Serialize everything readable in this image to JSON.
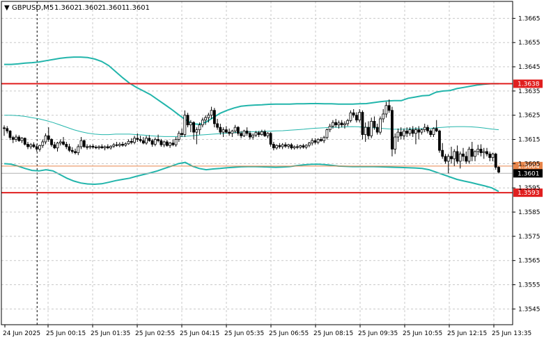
{
  "header": {
    "arrow": "▼",
    "symbol": "GBPUSD,M5",
    "open": "1.3602",
    "high": "1.3602",
    "low": "1.3601",
    "close": "1.3601"
  },
  "chart_data": {
    "type": "candlestick",
    "grid": true,
    "ylim": [
      1.35385,
      1.3672
    ],
    "y_ticks": [
      "1.3665",
      "1.3655",
      "1.3645",
      "1.3635",
      "1.3625",
      "1.3615",
      "1.3605",
      "1.3595",
      "1.3585",
      "1.3575",
      "1.3565",
      "1.3555",
      "1.3545"
    ],
    "x_ticks": [
      "24 Jun 2025",
      "25 Jun 00:15",
      "25 Jun 01:35",
      "25 Jun 02:55",
      "25 Jun 04:15",
      "25 Jun 05:35",
      "25 Jun 06:55",
      "25 Jun 08:15",
      "25 Jun 09:35",
      "25 Jun 10:55",
      "25 Jun 12:15",
      "25 Jun 13:35"
    ],
    "session_marker_index": 13,
    "levels": [
      {
        "value": 1.3638,
        "label": "1.3638",
        "color": "#e01f1f"
      },
      {
        "value": 1.3593,
        "label": "1.3593",
        "color": "#e01f1f"
      },
      {
        "value": 1.3604,
        "label": "1.3604",
        "color": "#e8854a"
      }
    ],
    "bid": {
      "value": 1.3601,
      "label": "1.3601"
    },
    "colors": {
      "bands": "#22b5ab",
      "candles": "#000000",
      "grid": "#c8c8c8"
    },
    "candles": [
      [
        1.36198,
        1.36208,
        1.36165,
        1.36195
      ],
      [
        1.36195,
        1.36205,
        1.36175,
        1.36185
      ],
      [
        1.36185,
        1.36188,
        1.36148,
        1.36158
      ],
      [
        1.36158,
        1.36165,
        1.36135,
        1.3615
      ],
      [
        1.3615,
        1.3617,
        1.3614,
        1.3616
      ],
      [
        1.3616,
        1.36168,
        1.3614,
        1.36145
      ],
      [
        1.36145,
        1.3616,
        1.36135,
        1.36155
      ],
      [
        1.36155,
        1.36158,
        1.36125,
        1.3613
      ],
      [
        1.3613,
        1.3614,
        1.3611,
        1.3612
      ],
      [
        1.3612,
        1.36135,
        1.3611,
        1.36128
      ],
      [
        1.36128,
        1.36138,
        1.36115,
        1.3612
      ],
      [
        1.3612,
        1.3613,
        1.361,
        1.3611
      ],
      [
        1.3611,
        1.36128,
        1.361,
        1.36125
      ],
      [
        1.36125,
        1.3615,
        1.36115,
        1.3614
      ],
      [
        1.3614,
        1.36175,
        1.3613,
        1.36165
      ],
      [
        1.36165,
        1.362,
        1.3614,
        1.3615
      ],
      [
        1.3615,
        1.36155,
        1.3612,
        1.36128
      ],
      [
        1.36128,
        1.3614,
        1.3611,
        1.36115
      ],
      [
        1.36115,
        1.3614,
        1.361,
        1.36135
      ],
      [
        1.36135,
        1.3615,
        1.36125,
        1.3614
      ],
      [
        1.3614,
        1.3616,
        1.36125,
        1.3613
      ],
      [
        1.3613,
        1.3614,
        1.3611,
        1.3612
      ],
      [
        1.3612,
        1.36132,
        1.36098,
        1.36105
      ],
      [
        1.36105,
        1.36118,
        1.36092,
        1.361
      ],
      [
        1.361,
        1.36112,
        1.36088,
        1.36095
      ],
      [
        1.36095,
        1.3613,
        1.36085,
        1.3612
      ],
      [
        1.3612,
        1.3616,
        1.3611,
        1.36145
      ],
      [
        1.36145,
        1.3615,
        1.36115,
        1.3612
      ],
      [
        1.3612,
        1.3613,
        1.36108,
        1.36118
      ],
      [
        1.36118,
        1.36128,
        1.3611,
        1.36122
      ],
      [
        1.36122,
        1.3613,
        1.36112,
        1.36118
      ],
      [
        1.36118,
        1.36126,
        1.3611,
        1.36116
      ],
      [
        1.36116,
        1.36126,
        1.36108,
        1.3612
      ],
      [
        1.3612,
        1.3613,
        1.36112,
        1.36115
      ],
      [
        1.36115,
        1.36125,
        1.36105,
        1.3612
      ],
      [
        1.3612,
        1.3613,
        1.3611,
        1.36115
      ],
      [
        1.36115,
        1.36126,
        1.36108,
        1.36122
      ],
      [
        1.36122,
        1.36135,
        1.36115,
        1.36128
      ],
      [
        1.36128,
        1.3614,
        1.3612,
        1.36125
      ],
      [
        1.36125,
        1.36138,
        1.36118,
        1.3613
      ],
      [
        1.3613,
        1.3614,
        1.3612,
        1.36126
      ],
      [
        1.36126,
        1.36138,
        1.3612,
        1.36132
      ],
      [
        1.36132,
        1.3615,
        1.36128,
        1.36142
      ],
      [
        1.36142,
        1.36155,
        1.3613,
        1.36138
      ],
      [
        1.36138,
        1.36165,
        1.3613,
        1.36155
      ],
      [
        1.36155,
        1.36175,
        1.3614,
        1.3615
      ],
      [
        1.3615,
        1.36165,
        1.36138,
        1.36145
      ],
      [
        1.36145,
        1.3616,
        1.3613,
        1.36135
      ],
      [
        1.36135,
        1.36165,
        1.36128,
        1.36155
      ],
      [
        1.36155,
        1.36168,
        1.3614,
        1.36145
      ],
      [
        1.36145,
        1.36152,
        1.3612,
        1.3613
      ],
      [
        1.3613,
        1.36158,
        1.36122,
        1.3615
      ],
      [
        1.3615,
        1.3617,
        1.36138,
        1.36145
      ],
      [
        1.36145,
        1.36152,
        1.3612,
        1.36128
      ],
      [
        1.36128,
        1.36145,
        1.36118,
        1.3614
      ],
      [
        1.3614,
        1.36148,
        1.3612,
        1.36125
      ],
      [
        1.36125,
        1.3614,
        1.36115,
        1.36135
      ],
      [
        1.36135,
        1.3615,
        1.36122,
        1.36128
      ],
      [
        1.36128,
        1.3616,
        1.3612,
        1.3615
      ],
      [
        1.3615,
        1.36185,
        1.3614,
        1.36175
      ],
      [
        1.36175,
        1.36195,
        1.3616,
        1.3617
      ],
      [
        1.3617,
        1.3627,
        1.3616,
        1.3625
      ],
      [
        1.3625,
        1.3626,
        1.362,
        1.3621
      ],
      [
        1.3621,
        1.3623,
        1.3618,
        1.3622
      ],
      [
        1.3622,
        1.36225,
        1.3615,
        1.3618
      ],
      [
        1.3618,
        1.362,
        1.3613,
        1.3619
      ],
      [
        1.3619,
        1.3622,
        1.3617,
        1.3621
      ],
      [
        1.3621,
        1.3624,
        1.362,
        1.3623
      ],
      [
        1.3623,
        1.3625,
        1.3621,
        1.3624
      ],
      [
        1.3624,
        1.3626,
        1.3622,
        1.3625
      ],
      [
        1.3625,
        1.36285,
        1.36235,
        1.3627
      ],
      [
        1.3627,
        1.3628,
        1.362,
        1.36215
      ],
      [
        1.36215,
        1.36235,
        1.3619,
        1.362
      ],
      [
        1.362,
        1.36215,
        1.3617,
        1.3618
      ],
      [
        1.3618,
        1.362,
        1.3616,
        1.3619
      ],
      [
        1.3619,
        1.36205,
        1.36175,
        1.3618
      ],
      [
        1.3618,
        1.36195,
        1.36165,
        1.36175
      ],
      [
        1.36175,
        1.3619,
        1.3616,
        1.36185
      ],
      [
        1.36185,
        1.3621,
        1.36175,
        1.362
      ],
      [
        1.362,
        1.36205,
        1.36165,
        1.36175
      ],
      [
        1.36175,
        1.36185,
        1.36155,
        1.36165
      ],
      [
        1.36165,
        1.3619,
        1.3616,
        1.36185
      ],
      [
        1.36185,
        1.362,
        1.36165,
        1.36175
      ],
      [
        1.36175,
        1.36185,
        1.3615,
        1.3616
      ],
      [
        1.3616,
        1.36175,
        1.3615,
        1.36168
      ],
      [
        1.36168,
        1.36185,
        1.3616,
        1.36178
      ],
      [
        1.36178,
        1.36185,
        1.3616,
        1.3617
      ],
      [
        1.3617,
        1.3619,
        1.36165,
        1.36182
      ],
      [
        1.36182,
        1.3619,
        1.3616,
        1.36165
      ],
      [
        1.36165,
        1.3618,
        1.36155,
        1.36175
      ],
      [
        1.36175,
        1.3618,
        1.3612,
        1.3613
      ],
      [
        1.3613,
        1.3614,
        1.36105,
        1.36115
      ],
      [
        1.36115,
        1.3613,
        1.36108,
        1.36125
      ],
      [
        1.36125,
        1.36135,
        1.36112,
        1.3612
      ],
      [
        1.3612,
        1.36135,
        1.3611,
        1.36128
      ],
      [
        1.36128,
        1.36138,
        1.36115,
        1.36122
      ],
      [
        1.36122,
        1.36132,
        1.36112,
        1.36128
      ],
      [
        1.36128,
        1.36135,
        1.36108,
        1.36115
      ],
      [
        1.36115,
        1.36125,
        1.36108,
        1.3612
      ],
      [
        1.3612,
        1.3613,
        1.3611,
        1.36118
      ],
      [
        1.36118,
        1.36128,
        1.3611,
        1.36124
      ],
      [
        1.36124,
        1.36132,
        1.36112,
        1.36118
      ],
      [
        1.36118,
        1.3613,
        1.3611,
        1.36126
      ],
      [
        1.36126,
        1.3614,
        1.36118,
        1.36135
      ],
      [
        1.36135,
        1.36155,
        1.36125,
        1.36145
      ],
      [
        1.36145,
        1.36155,
        1.3613,
        1.36138
      ],
      [
        1.36138,
        1.36155,
        1.3613,
        1.3615
      ],
      [
        1.3615,
        1.3616,
        1.3614,
        1.36145
      ],
      [
        1.36145,
        1.36165,
        1.36135,
        1.36158
      ],
      [
        1.36158,
        1.36195,
        1.3615,
        1.3619
      ],
      [
        1.3619,
        1.36215,
        1.3618,
        1.36205
      ],
      [
        1.36205,
        1.3623,
        1.36195,
        1.3622
      ],
      [
        1.3622,
        1.36235,
        1.362,
        1.3621
      ],
      [
        1.3621,
        1.36228,
        1.36195,
        1.36218
      ],
      [
        1.36218,
        1.3623,
        1.362,
        1.3621
      ],
      [
        1.3621,
        1.36225,
        1.36195,
        1.36215
      ],
      [
        1.36215,
        1.36235,
        1.36205,
        1.36228
      ],
      [
        1.36228,
        1.3627,
        1.3622,
        1.3626
      ],
      [
        1.3626,
        1.36275,
        1.3624,
        1.3625
      ],
      [
        1.3625,
        1.36262,
        1.3622,
        1.3623
      ],
      [
        1.3623,
        1.36275,
        1.3622,
        1.36262
      ],
      [
        1.36262,
        1.3627,
        1.3615,
        1.3617
      ],
      [
        1.3617,
        1.3622,
        1.3614,
        1.362
      ],
      [
        1.362,
        1.36225,
        1.3615,
        1.36165
      ],
      [
        1.36165,
        1.3624,
        1.36155,
        1.36225
      ],
      [
        1.36225,
        1.36245,
        1.3619,
        1.362
      ],
      [
        1.362,
        1.36215,
        1.3617,
        1.3618
      ],
      [
        1.3618,
        1.36245,
        1.3617,
        1.36235
      ],
      [
        1.36235,
        1.36275,
        1.3622,
        1.36255
      ],
      [
        1.36255,
        1.36305,
        1.3624,
        1.3629
      ],
      [
        1.3629,
        1.36315,
        1.3626,
        1.3627
      ],
      [
        1.3627,
        1.36285,
        1.3608,
        1.3611
      ],
      [
        1.3611,
        1.36175,
        1.3609,
        1.3616
      ],
      [
        1.3616,
        1.36195,
        1.3614,
        1.3618
      ],
      [
        1.3618,
        1.362,
        1.3615,
        1.36165
      ],
      [
        1.36165,
        1.36195,
        1.3615,
        1.36185
      ],
      [
        1.36185,
        1.362,
        1.3616,
        1.36175
      ],
      [
        1.36175,
        1.362,
        1.36165,
        1.3619
      ],
      [
        1.3619,
        1.36205,
        1.3616,
        1.36175
      ],
      [
        1.36175,
        1.362,
        1.3613,
        1.3619
      ],
      [
        1.3619,
        1.36205,
        1.3615,
        1.3618
      ],
      [
        1.3618,
        1.36195,
        1.3617,
        1.3619
      ],
      [
        1.3619,
        1.36215,
        1.3618,
        1.362
      ],
      [
        1.362,
        1.3621,
        1.36175,
        1.36185
      ],
      [
        1.36185,
        1.36192,
        1.3616,
        1.3617
      ],
      [
        1.3617,
        1.362,
        1.3616,
        1.36195
      ],
      [
        1.36195,
        1.3623,
        1.3618,
        1.36185
      ],
      [
        1.36185,
        1.3619,
        1.36095,
        1.36105
      ],
      [
        1.36105,
        1.36135,
        1.3607,
        1.3608
      ],
      [
        1.3608,
        1.3609,
        1.3605,
        1.3606
      ],
      [
        1.3606,
        1.3609,
        1.3601,
        1.3608
      ],
      [
        1.3608,
        1.3612,
        1.3605,
        1.3607
      ],
      [
        1.3607,
        1.3611,
        1.3604,
        1.361
      ],
      [
        1.361,
        1.36125,
        1.3605,
        1.3606
      ],
      [
        1.3606,
        1.361,
        1.3603,
        1.3609
      ],
      [
        1.3609,
        1.36115,
        1.3606,
        1.3608
      ],
      [
        1.3608,
        1.361,
        1.3605,
        1.3606
      ],
      [
        1.3606,
        1.3612,
        1.3605,
        1.3611
      ],
      [
        1.3611,
        1.3614,
        1.3606,
        1.3608
      ],
      [
        1.3608,
        1.36105,
        1.3606,
        1.361
      ],
      [
        1.361,
        1.36128,
        1.36085,
        1.3611
      ],
      [
        1.3611,
        1.3613,
        1.3608,
        1.36095
      ],
      [
        1.36095,
        1.36115,
        1.3607,
        1.361
      ],
      [
        1.361,
        1.36115,
        1.3608,
        1.3609
      ],
      [
        1.3609,
        1.361,
        1.3606,
        1.36075
      ],
      [
        1.36075,
        1.36095,
        1.3606,
        1.3609
      ],
      [
        1.3609,
        1.36095,
        1.36025,
        1.36035
      ],
      [
        1.36035,
        1.3604,
        1.3601,
        1.36015
      ]
    ],
    "bands": {
      "upper": [
        1.3646,
        1.3646,
        1.36462,
        1.36465,
        1.36467,
        1.3647,
        1.36475,
        1.3648,
        1.36485,
        1.36488,
        1.3649,
        1.3649,
        1.36488,
        1.36482,
        1.36472,
        1.36455,
        1.3643,
        1.36405,
        1.36382,
        1.36365,
        1.3635,
        1.36335,
        1.36315,
        1.36295,
        1.36275,
        1.36253,
        1.36232,
        1.36215,
        1.36212,
        1.36222,
        1.3624,
        1.36258,
        1.3627,
        1.3628,
        1.36287,
        1.3629,
        1.36292,
        1.36293,
        1.36295,
        1.36296,
        1.36296,
        1.36296,
        1.36297,
        1.36297,
        1.36298,
        1.36298,
        1.36297,
        1.36297,
        1.36296,
        1.36296,
        1.36296,
        1.36297,
        1.36298,
        1.36302,
        1.36306,
        1.36309,
        1.3631,
        1.3631,
        1.3632,
        1.36325,
        1.3633,
        1.36332,
        1.36345,
        1.3635,
        1.36352,
        1.3636,
        1.36365,
        1.3637,
        1.36375,
        1.36378,
        1.3638,
        1.3638
      ],
      "middle": [
        1.3625,
        1.3625,
        1.36248,
        1.36245,
        1.3624,
        1.36235,
        1.36228,
        1.3622,
        1.3621,
        1.362,
        1.3619,
        1.36182,
        1.36176,
        1.36172,
        1.3617,
        1.3617,
        1.36172,
        1.36172,
        1.36172,
        1.3617,
        1.36168,
        1.36165,
        1.36163,
        1.36162,
        1.36162,
        1.36162,
        1.36163,
        1.36165,
        1.36168,
        1.3617,
        1.36172,
        1.36174,
        1.36176,
        1.36178,
        1.3618,
        1.36181,
        1.36182,
        1.36183,
        1.36184,
        1.36185,
        1.36186,
        1.36188,
        1.3619,
        1.36192,
        1.36195,
        1.36197,
        1.36198,
        1.362,
        1.362,
        1.36202,
        1.36203,
        1.36202,
        1.362,
        1.36198,
        1.36196,
        1.36194,
        1.36192,
        1.36192,
        1.36193,
        1.36195,
        1.36195,
        1.36195,
        1.36198,
        1.362,
        1.36202,
        1.36203,
        1.36203,
        1.36202,
        1.362,
        1.36197,
        1.36193,
        1.3619
      ],
      "lower": [
        1.3605,
        1.36048,
        1.3604,
        1.3603,
        1.36022,
        1.3602,
        1.36025,
        1.3602,
        1.36005,
        1.3599,
        1.35978,
        1.3597,
        1.35966,
        1.35965,
        1.35967,
        1.35973,
        1.3598,
        1.35985,
        1.3599,
        1.35998,
        1.36005,
        1.36012,
        1.3602,
        1.3603,
        1.3604,
        1.3605,
        1.36055,
        1.3604,
        1.3603,
        1.36025,
        1.36028,
        1.3603,
        1.36033,
        1.36035,
        1.36037,
        1.36038,
        1.36038,
        1.36037,
        1.36036,
        1.36035,
        1.36036,
        1.36038,
        1.36042,
        1.36045,
        1.36047,
        1.36048,
        1.36046,
        1.36043,
        1.3604,
        1.36039,
        1.36038,
        1.36038,
        1.36038,
        1.36038,
        1.36037,
        1.36036,
        1.36035,
        1.36034,
        1.36033,
        1.36032,
        1.3603,
        1.36025,
        1.36015,
        1.36005,
        1.35995,
        1.35985,
        1.35978,
        1.35972,
        1.35965,
        1.35958,
        1.3595,
        1.35935
      ]
    }
  }
}
